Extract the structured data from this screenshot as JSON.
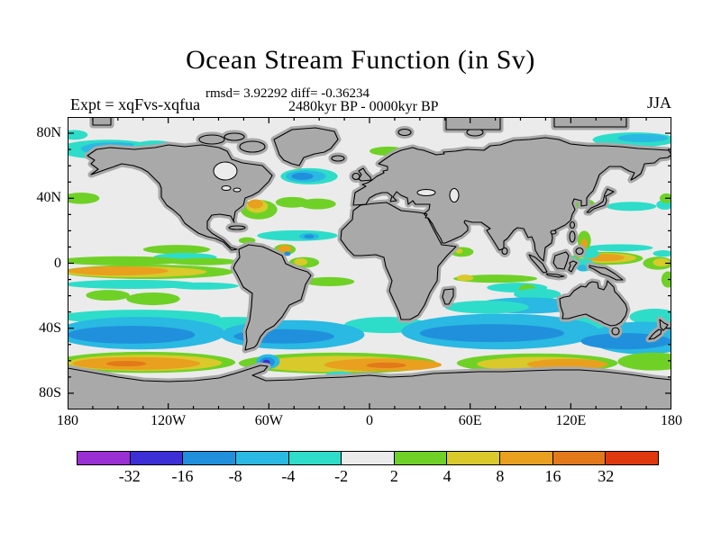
{
  "figure": {
    "title": "Ocean Stream Function (in Sv)",
    "stats": "rmsd= 3.92292 diff= -0.36234",
    "period": "2480kyr BP - 0000kyr BP",
    "experiment": "Expt = xqFvs-xqfua",
    "season": "JJA"
  },
  "axes": {
    "lat_labels": [
      {
        "text": "80N",
        "value": 80
      },
      {
        "text": "40N",
        "value": 40
      },
      {
        "text": "0",
        "value": 0
      },
      {
        "text": "40S",
        "value": -40
      },
      {
        "text": "80S",
        "value": -80
      }
    ],
    "lon_labels": [
      {
        "text": "180",
        "value": -180
      },
      {
        "text": "120W",
        "value": -120
      },
      {
        "text": "60W",
        "value": -60
      },
      {
        "text": "0",
        "value": 0
      },
      {
        "text": "60E",
        "value": 60
      },
      {
        "text": "120E",
        "value": 120
      },
      {
        "text": "180",
        "value": 180
      }
    ],
    "lat_minor_step": 10,
    "lat_major_step": 40,
    "lon_minor_step": 15,
    "lon_major_step": 60
  },
  "colorbar": {
    "tick_labels": [
      "-32",
      "-16",
      "-8",
      "-4",
      "-2",
      "2",
      "4",
      "8",
      "16",
      "32"
    ],
    "colors": [
      "#9a2fd4",
      "#3b2fd5",
      "#2090dc",
      "#29b9e2",
      "#2eddc9",
      "#ebebeb",
      "#6fd126",
      "#d9c92b",
      "#e8a01e",
      "#e2791a",
      "#e0380e"
    ]
  },
  "palette": {
    "land": "#a9a9a9",
    "ocean": "#ebebeb",
    "coastline": "#000000",
    "frame": "#000000"
  },
  "chart_data": {
    "type": "heatmap",
    "title": "Ocean Stream Function (in Sv)",
    "units": "Sv",
    "season": "JJA",
    "experiment": "xqFvs-xqfua",
    "comparison": "2480kyr BP - 0000kyr BP",
    "rmsd": 3.92292,
    "diff": -0.36234,
    "levels": [
      -32,
      -16,
      -8,
      -4,
      -2,
      2,
      4,
      8,
      16,
      32
    ],
    "level_colors": [
      "#9a2fd4",
      "#3b2fd5",
      "#2090dc",
      "#29b9e2",
      "#2eddc9",
      "#ebebeb",
      "#6fd126",
      "#d9c92b",
      "#e8a01e",
      "#e2791a",
      "#e0380e"
    ],
    "lon_range": [
      -180,
      180
    ],
    "lat_range": [
      -90,
      90
    ],
    "anomaly_regions": [
      [
        -156,
        70,
        30,
        6,
        -3
      ],
      [
        -153,
        70.5,
        19,
        4,
        -6
      ],
      [
        -128,
        72,
        13,
        3.5,
        -3
      ],
      [
        -176,
        79,
        8,
        3,
        -3
      ],
      [
        158,
        76,
        25,
        4.5,
        -3
      ],
      [
        163,
        77,
        15,
        2.5,
        -6
      ],
      [
        172,
        67,
        6,
        1.7,
        -3
      ],
      [
        -172,
        40,
        11,
        3.5,
        3
      ],
      [
        121,
        37,
        13,
        3.5,
        3
      ],
      [
        156,
        35,
        15,
        2.8,
        -3
      ],
      [
        176,
        36,
        5,
        3,
        -3
      ],
      [
        177,
        40,
        4,
        3,
        3
      ],
      [
        11,
        69,
        11,
        2.8,
        3
      ],
      [
        31,
        66.5,
        4,
        1.6,
        3
      ],
      [
        -36,
        53.5,
        17,
        5,
        -3
      ],
      [
        -38,
        53.5,
        12,
        3.6,
        -6
      ],
      [
        -40,
        53.5,
        6.5,
        2.2,
        -10
      ],
      [
        -43,
        60,
        3,
        2,
        6
      ],
      [
        -43.5,
        60.2,
        1.5,
        1,
        12
      ],
      [
        -46,
        37.5,
        10,
        3.3,
        3
      ],
      [
        -31,
        36.5,
        11,
        3.3,
        3
      ],
      [
        -66,
        33,
        11,
        6,
        3
      ],
      [
        -67,
        35,
        6.5,
        4,
        6
      ],
      [
        -68,
        36.5,
        4.5,
        2.8,
        12
      ],
      [
        -43,
        17,
        24,
        3.3,
        -3
      ],
      [
        -36,
        16.5,
        6,
        2,
        -6
      ],
      [
        -36,
        16.5,
        3,
        1.2,
        -10
      ],
      [
        -73,
        14,
        5,
        2,
        3
      ],
      [
        -50.5,
        8.5,
        6.5,
        3.3,
        3
      ],
      [
        -50.5,
        9,
        4,
        2.2,
        12
      ],
      [
        -49,
        5.8,
        2,
        1.3,
        -10
      ],
      [
        -39,
        0.5,
        9,
        3.3,
        3
      ],
      [
        -41,
        0.8,
        4,
        2.2,
        6
      ],
      [
        -42.5,
        -3,
        1.6,
        1.1,
        -10
      ],
      [
        -24,
        -11.3,
        15,
        2.8,
        3
      ],
      [
        -115,
        8.5,
        20,
        2.8,
        3
      ],
      [
        -110,
        3.6,
        19,
        2.8,
        -3
      ],
      [
        -148,
        1.5,
        38,
        2.8,
        3
      ],
      [
        -99,
        1,
        21,
        2.2,
        3
      ],
      [
        -132,
        -5.3,
        51,
        4.4,
        3
      ],
      [
        -140,
        -5.3,
        43,
        3.3,
        6
      ],
      [
        -150,
        -4.7,
        30,
        2.8,
        12
      ],
      [
        -142,
        -13,
        40,
        2.8,
        -3
      ],
      [
        -99,
        -14,
        21,
        2.2,
        -3
      ],
      [
        -156,
        -19.7,
        13,
        3.3,
        3
      ],
      [
        -129,
        -21.9,
        16,
        3.9,
        3
      ],
      [
        -137,
        -33,
        48,
        4.4,
        -3
      ],
      [
        149,
        9.5,
        20,
        2.2,
        -3
      ],
      [
        175,
        6,
        6,
        2,
        -3
      ],
      [
        141,
        3,
        22,
        4,
        3
      ],
      [
        142,
        3.2,
        17,
        3,
        6
      ],
      [
        140,
        3.5,
        12,
        2.2,
        12
      ],
      [
        172,
        0,
        9,
        4,
        3
      ],
      [
        174,
        0.5,
        5,
        2.5,
        6
      ],
      [
        178,
        -10,
        4,
        5,
        3
      ],
      [
        117,
        0,
        8,
        5,
        -3
      ],
      [
        128,
        -1,
        6,
        4,
        -3
      ],
      [
        131,
        6,
        6,
        3,
        -3
      ],
      [
        127,
        -3,
        3,
        2,
        -6
      ],
      [
        128,
        14,
        4,
        6,
        3
      ],
      [
        128,
        12,
        2,
        3,
        12
      ],
      [
        55,
        7,
        7,
        3,
        3
      ],
      [
        53.5,
        7.5,
        2,
        1.5,
        6
      ],
      [
        75,
        -9.5,
        25,
        2.5,
        3
      ],
      [
        57,
        -9,
        5,
        2,
        6
      ],
      [
        88,
        -15,
        18,
        3,
        -3
      ],
      [
        94,
        -16,
        5,
        3,
        3
      ],
      [
        100,
        -19,
        14,
        3.5,
        -3
      ],
      [
        94,
        -26,
        30,
        5,
        -6
      ],
      [
        70,
        -27,
        25,
        4,
        -3
      ],
      [
        -80,
        -37,
        25,
        4,
        -3
      ],
      [
        10,
        -38,
        25,
        5,
        -3
      ],
      [
        120,
        -38,
        22,
        4,
        -3
      ],
      [
        138,
        -36,
        15,
        4,
        -3
      ],
      [
        170,
        -33,
        15,
        5,
        -3
      ],
      [
        174,
        -51,
        12,
        4,
        -3
      ],
      [
        -137,
        -43,
        51,
        10,
        -6
      ],
      [
        -46,
        -44,
        43,
        9,
        -6
      ],
      [
        78,
        -42,
        59,
        11,
        -6
      ],
      [
        163,
        -46,
        32,
        10,
        -6
      ],
      [
        -142,
        -44,
        38,
        5.5,
        -10
      ],
      [
        -51,
        -45,
        30,
        4.4,
        -10
      ],
      [
        73,
        -43,
        43,
        5.5,
        -10
      ],
      [
        153,
        -48,
        27,
        5,
        -10
      ],
      [
        -134,
        -61,
        54,
        6.5,
        3
      ],
      [
        -19,
        -61.5,
        59,
        6.5,
        3
      ],
      [
        100,
        -61.5,
        48,
        6,
        3
      ],
      [
        169,
        -60.5,
        21,
        5.5,
        3
      ],
      [
        -134,
        -61.3,
        46,
        5,
        6
      ],
      [
        -19,
        -62,
        48,
        5,
        6
      ],
      [
        102,
        -62,
        38,
        4.4,
        6
      ],
      [
        -139,
        -61.7,
        38,
        3.9,
        12
      ],
      [
        8,
        -62.5,
        35,
        3.9,
        12
      ],
      [
        118,
        -62.2,
        24,
        3.3,
        12
      ],
      [
        -145,
        -61.8,
        12,
        1.7,
        24
      ],
      [
        10,
        -62.8,
        12,
        1.7,
        24
      ],
      [
        -60.5,
        -60.5,
        7,
        4.5,
        -6
      ],
      [
        -61,
        -60.8,
        4.5,
        3,
        -10
      ],
      [
        -61.5,
        -61,
        2.2,
        1.7,
        -20
      ],
      [
        -18,
        -68.5,
        8,
        2,
        -3
      ]
    ]
  }
}
